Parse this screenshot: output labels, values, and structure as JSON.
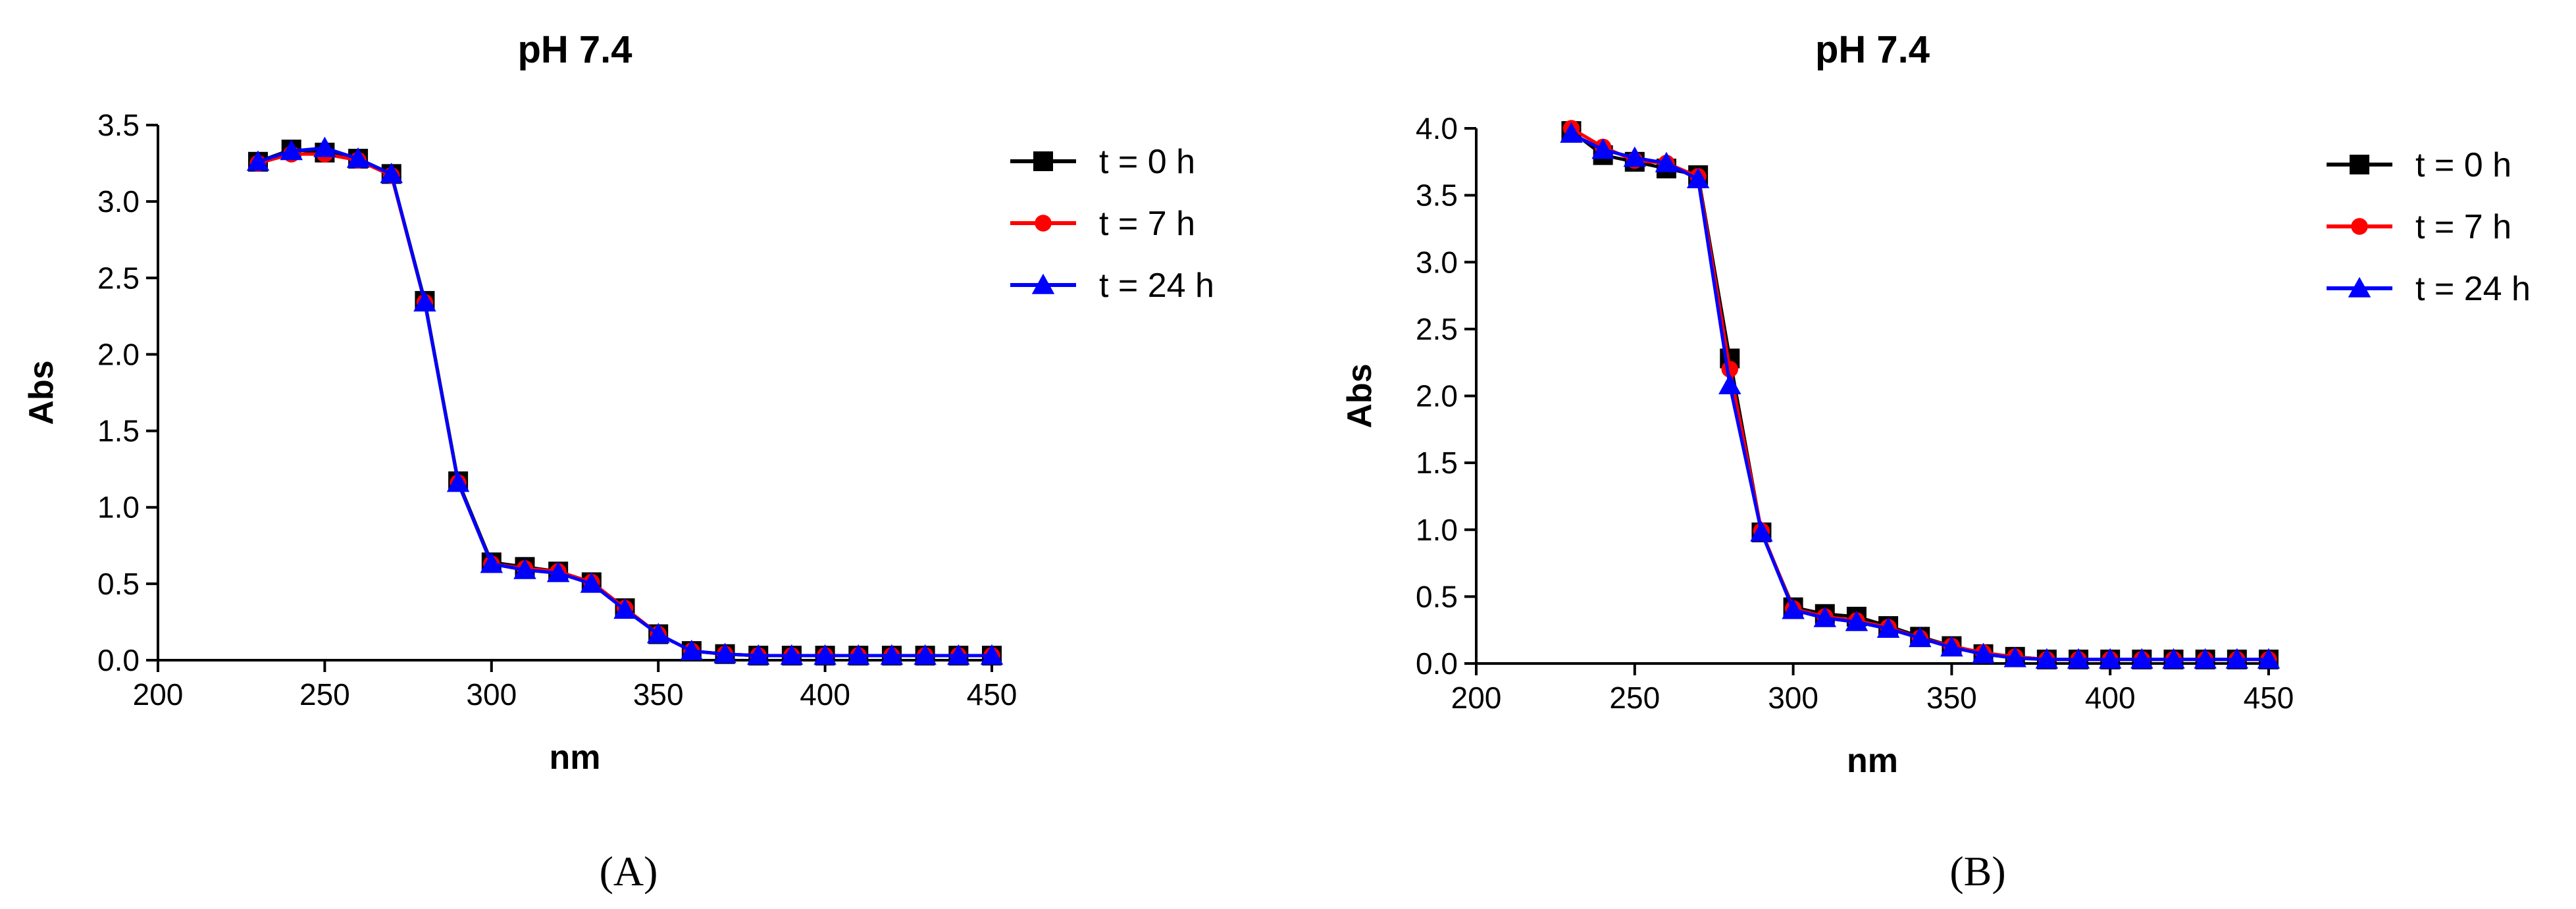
{
  "colors": {
    "t0": "#000000",
    "t7": "#ff0000",
    "t24": "#0000ff",
    "axis": "#000000"
  },
  "chart_data": [
    {
      "type": "line",
      "panel_label": "(A)",
      "title": "pH 7.4",
      "xlabel": "nm",
      "ylabel": "Abs",
      "xlim": [
        200,
        450
      ],
      "ylim": [
        0,
        3.5
      ],
      "xticks": [
        200,
        250,
        300,
        350,
        400,
        450
      ],
      "yticks": [
        0.0,
        0.5,
        1.0,
        1.5,
        2.0,
        2.5,
        3.0,
        3.5
      ],
      "grid": false,
      "legend_position": "right",
      "x": [
        230,
        240,
        250,
        260,
        270,
        280,
        290,
        300,
        310,
        320,
        330,
        340,
        350,
        360,
        370,
        380,
        390,
        400,
        410,
        420,
        430,
        440,
        450
      ],
      "series": [
        {
          "name": "t = 0 h",
          "marker": "square",
          "color": "#000000",
          "values": [
            3.26,
            3.34,
            3.32,
            3.28,
            3.18,
            2.35,
            1.17,
            0.64,
            0.61,
            0.58,
            0.51,
            0.34,
            0.17,
            0.06,
            0.04,
            0.03,
            0.03,
            0.03,
            0.03,
            0.03,
            0.03,
            0.03,
            0.03
          ]
        },
        {
          "name": "t = 7 h",
          "marker": "circle",
          "color": "#ff0000",
          "values": [
            3.25,
            3.31,
            3.31,
            3.27,
            3.17,
            2.34,
            1.16,
            0.63,
            0.6,
            0.58,
            0.51,
            0.34,
            0.17,
            0.06,
            0.04,
            0.03,
            0.03,
            0.03,
            0.03,
            0.03,
            0.03,
            0.03,
            0.03
          ]
        },
        {
          "name": "t = 24 h",
          "marker": "triangle",
          "color": "#0000ff",
          "values": [
            3.26,
            3.33,
            3.35,
            3.28,
            3.18,
            2.34,
            1.16,
            0.63,
            0.59,
            0.57,
            0.5,
            0.33,
            0.17,
            0.06,
            0.04,
            0.03,
            0.03,
            0.03,
            0.03,
            0.03,
            0.03,
            0.03,
            0.03
          ]
        }
      ]
    },
    {
      "type": "line",
      "panel_label": "(B)",
      "title": "pH 7.4",
      "xlabel": "nm",
      "ylabel": "Abs",
      "xlim": [
        200,
        450
      ],
      "ylim": [
        0,
        4.0
      ],
      "xticks": [
        200,
        250,
        300,
        350,
        400,
        450
      ],
      "yticks": [
        0.0,
        0.5,
        1.0,
        1.5,
        2.0,
        2.5,
        3.0,
        3.5,
        4.0
      ],
      "grid": false,
      "legend_position": "right",
      "x": [
        230,
        240,
        250,
        260,
        270,
        280,
        290,
        300,
        310,
        320,
        330,
        340,
        350,
        360,
        370,
        380,
        390,
        400,
        410,
        420,
        430,
        440,
        450
      ],
      "series": [
        {
          "name": "t = 0 h",
          "marker": "square",
          "color": "#000000",
          "values": [
            3.98,
            3.8,
            3.75,
            3.7,
            3.65,
            2.28,
            0.98,
            0.42,
            0.37,
            0.35,
            0.28,
            0.2,
            0.13,
            0.07,
            0.05,
            0.03,
            0.03,
            0.03,
            0.03,
            0.03,
            0.03,
            0.03,
            0.03
          ]
        },
        {
          "name": "t = 7 h",
          "marker": "circle",
          "color": "#ff0000",
          "values": [
            4.0,
            3.86,
            3.76,
            3.74,
            3.64,
            2.2,
            0.99,
            0.41,
            0.35,
            0.32,
            0.27,
            0.19,
            0.13,
            0.08,
            0.05,
            0.03,
            0.03,
            0.03,
            0.03,
            0.03,
            0.03,
            0.03,
            0.03
          ]
        },
        {
          "name": "t = 24 h",
          "marker": "triangle",
          "color": "#0000ff",
          "values": [
            3.96,
            3.84,
            3.78,
            3.74,
            3.62,
            2.08,
            0.98,
            0.4,
            0.34,
            0.31,
            0.26,
            0.19,
            0.12,
            0.07,
            0.04,
            0.03,
            0.03,
            0.03,
            0.03,
            0.03,
            0.03,
            0.03,
            0.03
          ]
        }
      ]
    }
  ]
}
